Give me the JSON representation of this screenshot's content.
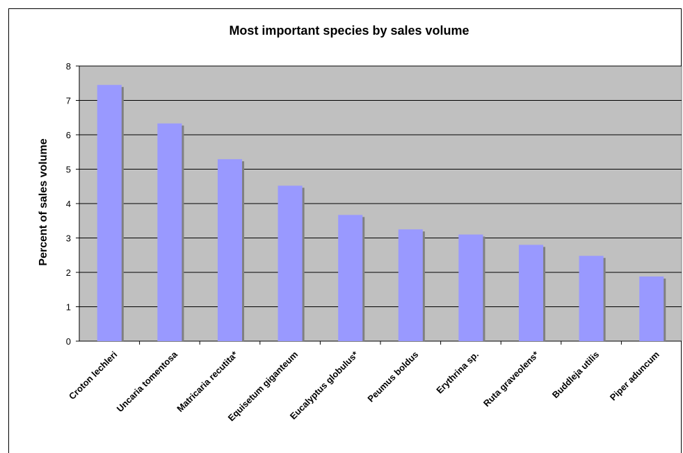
{
  "chart_data": {
    "type": "bar",
    "title": "Most important species by sales volume",
    "xlabel": "",
    "ylabel": "Percent of sales volume",
    "ylim": [
      0,
      8
    ],
    "yticks": [
      "0",
      "1",
      "2",
      "3",
      "4",
      "5",
      "6",
      "7",
      "8"
    ],
    "grid": true,
    "legend": "none",
    "categories": [
      "Croton lechleri",
      "Uncaria tomentosa",
      "Matricaria recutita*",
      "Equisetum giganteum",
      "Eucalyptus globulus*",
      "Peumus boldus",
      "Erythrina sp.",
      "Ruta graveolens*",
      "Buddleja utilis",
      "Piper aduncum"
    ],
    "values": [
      7.45,
      6.33,
      5.29,
      4.52,
      3.67,
      3.25,
      3.1,
      2.8,
      2.48,
      1.88
    ],
    "colors": {
      "bar": "#9999ff",
      "bar_shadow": "#808080",
      "plot_bg": "#c0c0c0",
      "grid": "#000000"
    }
  }
}
